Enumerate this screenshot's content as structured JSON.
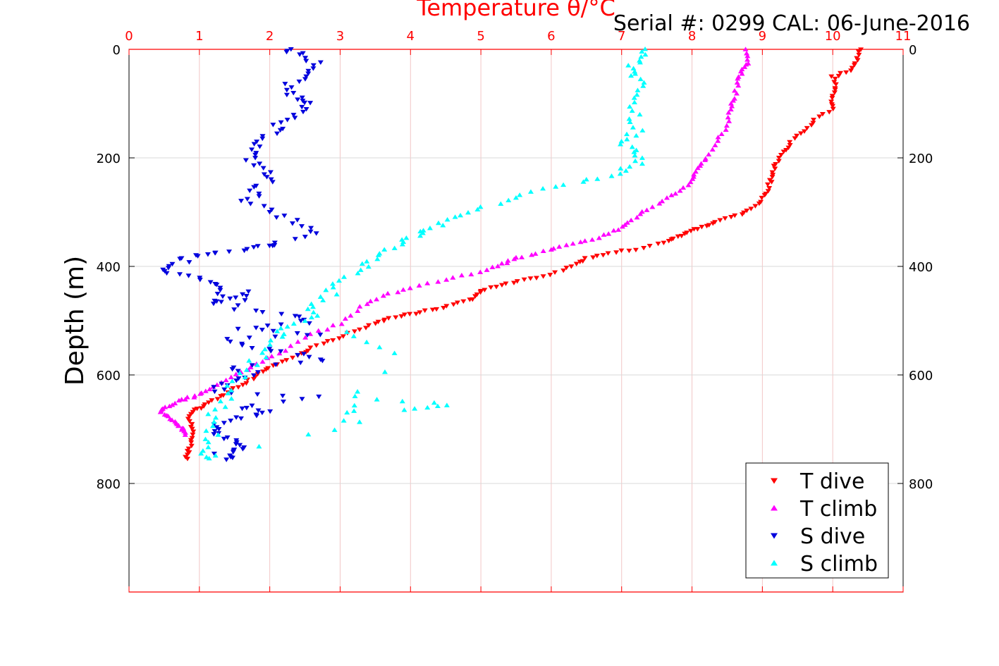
{
  "chart_data": {
    "type": "scatter",
    "title": "Temperature θ/°C",
    "subtitle": "Serial #: 0299 CAL: 06-June-2016",
    "xlabel": "Temperature θ/°C",
    "ylabel": "Depth (m)",
    "xlim": [
      0,
      11
    ],
    "ylim": [
      1000,
      0
    ],
    "y_reversed": true,
    "grid": true,
    "legend_position": "bottom-right",
    "x_ticks": [
      "0",
      "1",
      "2",
      "3",
      "4",
      "5",
      "6",
      "7",
      "8",
      "9",
      "10",
      "11"
    ],
    "y_ticks": [
      "0",
      "200",
      "400",
      "600",
      "800"
    ],
    "y_tick_values": [
      0,
      200,
      400,
      600,
      800
    ],
    "colors": {
      "axis_top": "#ff0000",
      "axis_left": "#000000",
      "grid_x": "#f2c6c6",
      "grid_y": "#d9d9d9",
      "t_dive": "#ff0000",
      "t_climb": "#ff00ff",
      "s_dive": "#0000dd",
      "s_climb": "#00ffff"
    },
    "series": [
      {
        "name": "T dive",
        "marker": "triangle-down",
        "color": "#ff0000",
        "points": [
          [
            10.4,
            0
          ],
          [
            10.35,
            20
          ],
          [
            10.25,
            40
          ],
          [
            10.0,
            50
          ],
          [
            10.05,
            70
          ],
          [
            10.0,
            90
          ],
          [
            10.0,
            110
          ],
          [
            9.75,
            130
          ],
          [
            9.6,
            150
          ],
          [
            9.4,
            170
          ],
          [
            9.3,
            190
          ],
          [
            9.2,
            210
          ],
          [
            9.15,
            230
          ],
          [
            9.1,
            250
          ],
          [
            9.05,
            270
          ],
          [
            8.9,
            290
          ],
          [
            8.7,
            305
          ],
          [
            8.4,
            315
          ],
          [
            8.2,
            325
          ],
          [
            8.0,
            335
          ],
          [
            7.8,
            345
          ],
          [
            7.6,
            355
          ],
          [
            7.2,
            368
          ],
          [
            6.8,
            376
          ],
          [
            6.5,
            385
          ],
          [
            6.3,
            400
          ],
          [
            6.0,
            415
          ],
          [
            5.6,
            425
          ],
          [
            5.3,
            435
          ],
          [
            5.0,
            445
          ],
          [
            4.9,
            460
          ],
          [
            4.6,
            470
          ],
          [
            4.3,
            480
          ],
          [
            4.0,
            488
          ],
          [
            3.7,
            495
          ],
          [
            3.5,
            505
          ],
          [
            3.2,
            520
          ],
          [
            2.9,
            535
          ],
          [
            2.6,
            550
          ],
          [
            2.4,
            565
          ],
          [
            2.1,
            580
          ],
          [
            1.9,
            595
          ],
          [
            1.7,
            610
          ],
          [
            1.5,
            625
          ],
          [
            1.3,
            640
          ],
          [
            1.1,
            655
          ],
          [
            0.95,
            665
          ],
          [
            0.85,
            680
          ],
          [
            0.9,
            700
          ],
          [
            0.9,
            720
          ],
          [
            0.85,
            740
          ],
          [
            0.82,
            755
          ]
        ]
      },
      {
        "name": "T climb",
        "marker": "triangle-up",
        "color": "#ff00ff",
        "points": [
          [
            8.75,
            0
          ],
          [
            8.8,
            25
          ],
          [
            8.7,
            40
          ],
          [
            8.65,
            60
          ],
          [
            8.6,
            90
          ],
          [
            8.55,
            110
          ],
          [
            8.5,
            140
          ],
          [
            8.35,
            170
          ],
          [
            8.2,
            200
          ],
          [
            8.1,
            220
          ],
          [
            8.0,
            240
          ],
          [
            7.85,
            260
          ],
          [
            7.6,
            280
          ],
          [
            7.3,
            300
          ],
          [
            7.1,
            320
          ],
          [
            6.9,
            335
          ],
          [
            6.6,
            350
          ],
          [
            6.2,
            362
          ],
          [
            5.9,
            372
          ],
          [
            5.5,
            385
          ],
          [
            5.3,
            395
          ],
          [
            5.0,
            410
          ],
          [
            4.5,
            425
          ],
          [
            4.0,
            440
          ],
          [
            3.6,
            455
          ],
          [
            3.3,
            475
          ],
          [
            3.0,
            505
          ],
          [
            2.6,
            525
          ],
          [
            2.2,
            555
          ],
          [
            1.9,
            575
          ],
          [
            1.6,
            595
          ],
          [
            1.3,
            615
          ],
          [
            1.1,
            630
          ],
          [
            0.9,
            640
          ],
          [
            0.7,
            648
          ],
          [
            0.5,
            660
          ],
          [
            0.45,
            670
          ],
          [
            0.6,
            680
          ],
          [
            0.7,
            690
          ],
          [
            0.75,
            700
          ],
          [
            0.8,
            710
          ]
        ]
      },
      {
        "name": "S dive",
        "marker": "triangle-down",
        "color": "#0000dd",
        "points": [
          [
            2.2,
            0
          ],
          [
            2.45,
            10
          ],
          [
            2.7,
            30
          ],
          [
            2.5,
            50
          ],
          [
            2.2,
            70
          ],
          [
            2.4,
            90
          ],
          [
            2.65,
            100
          ],
          [
            2.3,
            120
          ],
          [
            2.1,
            140
          ],
          [
            2.0,
            160
          ],
          [
            1.8,
            180
          ],
          [
            1.7,
            200
          ],
          [
            1.9,
            220
          ],
          [
            2.0,
            240
          ],
          [
            1.8,
            260
          ],
          [
            1.7,
            280
          ],
          [
            2.0,
            300
          ],
          [
            2.4,
            320
          ],
          [
            2.6,
            340
          ],
          [
            2.0,
            360
          ],
          [
            1.8,
            365
          ],
          [
            1.3,
            375
          ],
          [
            0.9,
            380
          ],
          [
            0.7,
            395
          ],
          [
            0.5,
            410
          ],
          [
            0.9,
            420
          ],
          [
            1.2,
            435
          ],
          [
            1.4,
            455
          ],
          [
            1.2,
            470
          ],
          [
            1.7,
            445
          ],
          [
            1.5,
            480
          ],
          [
            2.3,
            490
          ],
          [
            2.5,
            505
          ],
          [
            1.5,
            515
          ],
          [
            2.8,
            525
          ],
          [
            1.3,
            535
          ],
          [
            1.8,
            550
          ],
          [
            2.4,
            560
          ],
          [
            2.8,
            575
          ],
          [
            1.5,
            585
          ],
          [
            1.8,
            600
          ],
          [
            1.4,
            615
          ],
          [
            1.2,
            630
          ],
          [
            2.6,
            640
          ],
          [
            1.6,
            660
          ],
          [
            2.0,
            670
          ],
          [
            1.5,
            680
          ],
          [
            1.2,
            695
          ],
          [
            1.3,
            710
          ],
          [
            1.5,
            725
          ],
          [
            1.7,
            735
          ],
          [
            1.3,
            745
          ],
          [
            1.4,
            755
          ]
        ]
      },
      {
        "name": "S climb",
        "marker": "triangle-up",
        "color": "#00ffff",
        "points": [
          [
            7.4,
            0
          ],
          [
            7.3,
            20
          ],
          [
            7.1,
            40
          ],
          [
            7.25,
            60
          ],
          [
            7.2,
            90
          ],
          [
            7.15,
            120
          ],
          [
            7.2,
            150
          ],
          [
            7.0,
            170
          ],
          [
            7.25,
            190
          ],
          [
            7.2,
            210
          ],
          [
            6.9,
            230
          ],
          [
            6.4,
            245
          ],
          [
            5.8,
            262
          ],
          [
            5.2,
            285
          ],
          [
            4.8,
            305
          ],
          [
            4.4,
            325
          ],
          [
            4.1,
            340
          ],
          [
            3.9,
            355
          ],
          [
            3.6,
            375
          ],
          [
            3.4,
            395
          ],
          [
            3.1,
            420
          ],
          [
            2.9,
            445
          ],
          [
            2.7,
            470
          ],
          [
            2.6,
            490
          ],
          [
            2.3,
            510
          ],
          [
            2.1,
            530
          ],
          [
            1.9,
            560
          ],
          [
            1.7,
            590
          ],
          [
            1.5,
            620
          ],
          [
            1.3,
            650
          ],
          [
            1.2,
            680
          ],
          [
            1.2,
            710
          ],
          [
            1.1,
            740
          ],
          [
            1.15,
            755
          ],
          [
            3.9,
            665
          ],
          [
            4.6,
            655
          ],
          [
            3.3,
            640
          ],
          [
            2.9,
            700
          ],
          [
            3.8,
            560
          ],
          [
            3.0,
            520
          ]
        ]
      }
    ]
  }
}
